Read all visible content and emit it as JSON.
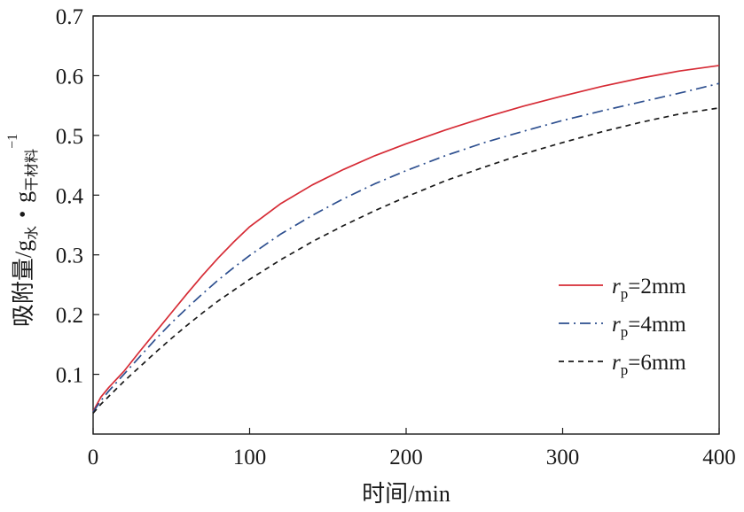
{
  "chart_data": {
    "type": "line",
    "xlabel": "时间/min",
    "ylabel_main": "吸附量/g",
    "ylabel_sub1": "水",
    "ylabel_mid": "・g",
    "ylabel_sub2": "干材料",
    "ylabel_sup": "−1",
    "xlim": [
      0,
      400
    ],
    "ylim": [
      0,
      0.7
    ],
    "x_ticks": [
      0,
      100,
      200,
      300,
      400
    ],
    "y_ticks": [
      0.1,
      0.2,
      0.3,
      0.4,
      0.5,
      0.6,
      0.7
    ],
    "y_tick_labels": [
      "0.1",
      "0.2",
      "0.3",
      "0.4",
      "0.5",
      "0.6",
      "0.7"
    ],
    "grid": false,
    "legend_position": "lower-right",
    "series": [
      {
        "legend_symbol": "r",
        "legend_subscript": "p",
        "legend_value": "=2mm",
        "color": "#d62b35",
        "dash": "solid",
        "x": [
          0,
          5,
          10,
          20,
          30,
          40,
          50,
          60,
          70,
          80,
          90,
          100,
          120,
          140,
          160,
          180,
          200,
          225,
          250,
          275,
          300,
          325,
          350,
          375,
          400
        ],
        "y": [
          0.038,
          0.062,
          0.078,
          0.106,
          0.139,
          0.171,
          0.203,
          0.235,
          0.266,
          0.295,
          0.322,
          0.347,
          0.386,
          0.417,
          0.443,
          0.466,
          0.486,
          0.509,
          0.53,
          0.549,
          0.566,
          0.582,
          0.596,
          0.608,
          0.617
        ]
      },
      {
        "legend_symbol": "r",
        "legend_subscript": "p",
        "legend_value": "=4mm",
        "color": "#2d4f8f",
        "dash": "dashdot",
        "x": [
          0,
          5,
          10,
          20,
          30,
          40,
          50,
          60,
          70,
          80,
          90,
          100,
          120,
          140,
          160,
          180,
          200,
          225,
          250,
          275,
          300,
          325,
          350,
          375,
          400
        ],
        "y": [
          0.037,
          0.056,
          0.072,
          0.101,
          0.13,
          0.159,
          0.186,
          0.211,
          0.235,
          0.258,
          0.279,
          0.299,
          0.335,
          0.366,
          0.394,
          0.419,
          0.441,
          0.466,
          0.488,
          0.507,
          0.525,
          0.541,
          0.556,
          0.571,
          0.587
        ]
      },
      {
        "legend_symbol": "r",
        "legend_subscript": "p",
        "legend_value": "=6mm",
        "color": "#1a1a1a",
        "dash": "dashed",
        "x": [
          0,
          5,
          10,
          20,
          30,
          40,
          50,
          60,
          70,
          80,
          90,
          100,
          120,
          140,
          160,
          180,
          200,
          225,
          250,
          275,
          300,
          325,
          350,
          375,
          400
        ],
        "y": [
          0.035,
          0.05,
          0.063,
          0.089,
          0.113,
          0.137,
          0.16,
          0.182,
          0.203,
          0.223,
          0.241,
          0.259,
          0.292,
          0.322,
          0.349,
          0.374,
          0.397,
          0.424,
          0.447,
          0.469,
          0.488,
          0.506,
          0.522,
          0.536,
          0.546
        ]
      }
    ]
  }
}
